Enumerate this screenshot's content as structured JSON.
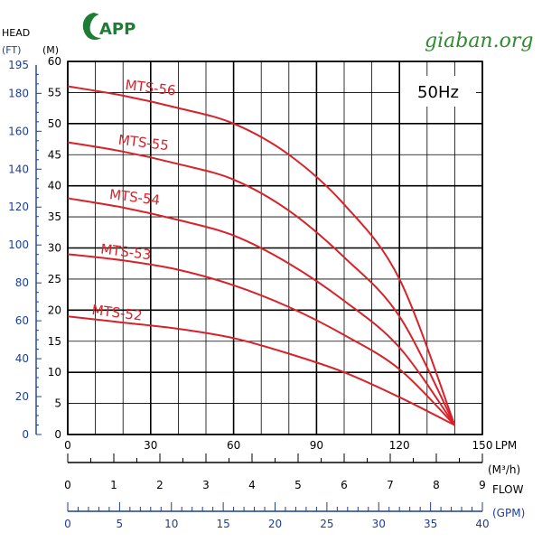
{
  "header": {
    "logo_text": "APP",
    "watermark": "giaban.org"
  },
  "chart_data": {
    "type": "line",
    "frequency_label": "50Hz",
    "head_label": "HEAD",
    "ft_unit": "(FT)",
    "m_unit": "(M)",
    "lpm_unit": "LPM",
    "m3h_unit": "(M³/h)",
    "flow_label": "FLOW",
    "gpm_unit": "(GPM)",
    "xlim": [
      0,
      150
    ],
    "ylim": [
      0,
      60
    ],
    "x_ticks": [
      0,
      30,
      60,
      90,
      120,
      150
    ],
    "y_ticks_m": [
      0,
      5,
      10,
      15,
      20,
      25,
      30,
      35,
      40,
      45,
      50,
      55,
      60
    ],
    "y_ticks_ft": [
      0,
      20,
      40,
      60,
      80,
      100,
      120,
      140,
      160,
      180,
      195
    ],
    "m3h_ticks": [
      0,
      1,
      2,
      3,
      4,
      5,
      6,
      7,
      8,
      9
    ],
    "gpm_ticks": [
      0,
      5,
      10,
      15,
      20,
      25,
      30,
      35,
      40
    ],
    "grid": true,
    "series": [
      {
        "name": "MTS-56",
        "x": [
          0,
          20,
          40,
          60,
          80,
          100,
          120,
          140
        ],
        "y": [
          56,
          54.5,
          52.5,
          50,
          45,
          37,
          25,
          1.5
        ]
      },
      {
        "name": "MTS-55",
        "x": [
          0,
          20,
          40,
          60,
          80,
          100,
          120,
          140
        ],
        "y": [
          47,
          45.5,
          43.5,
          41,
          36,
          28.5,
          19,
          1.5
        ]
      },
      {
        "name": "MTS-54",
        "x": [
          0,
          20,
          40,
          60,
          80,
          100,
          120,
          140
        ],
        "y": [
          38,
          36.5,
          34.5,
          32,
          27.5,
          21.5,
          14,
          1.5
        ]
      },
      {
        "name": "MTS-53",
        "x": [
          0,
          20,
          40,
          60,
          80,
          100,
          120,
          140
        ],
        "y": [
          29,
          28,
          26.5,
          24,
          20.5,
          16,
          10.5,
          1.5
        ]
      },
      {
        "name": "MTS-52",
        "x": [
          0,
          20,
          40,
          60,
          80,
          100,
          120,
          140
        ],
        "y": [
          19,
          18,
          17,
          15.5,
          13,
          10,
          6,
          1.5
        ]
      }
    ],
    "colors": {
      "curve": "#d8222a",
      "axis_black": "#000000",
      "axis_blue": "#1c3f9a",
      "logo_green": "#1e7d35"
    }
  }
}
